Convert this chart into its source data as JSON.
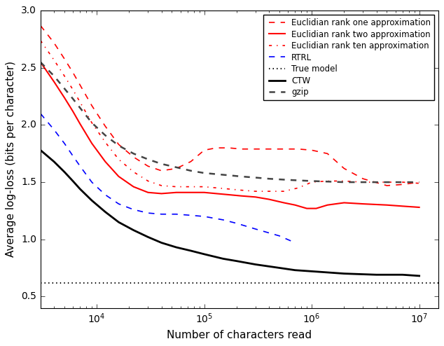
{
  "xlabel": "Number of characters read",
  "ylabel": "Average log-loss (bits per character)",
  "xlim": [
    3000,
    15000000
  ],
  "ylim": [
    0.4,
    3.0
  ],
  "yticks": [
    0.5,
    1.0,
    1.5,
    2.0,
    2.5,
    3.0
  ],
  "background": "#ffffff",
  "series": [
    {
      "key": "rank_one",
      "label": "Euclidian rank one approximation",
      "color": "red",
      "linestyle": "--",
      "linewidth": 1.2,
      "x": [
        3000,
        4000,
        5000,
        6000,
        7000,
        9000,
        12000,
        16000,
        22000,
        30000,
        40000,
        55000,
        75000,
        100000,
        130000,
        170000,
        220000,
        300000,
        400000,
        550000,
        750000,
        1000000,
        1400000,
        2000000,
        3000000,
        5000000,
        7000000,
        10000000
      ],
      "y": [
        2.87,
        2.72,
        2.58,
        2.46,
        2.35,
        2.17,
        1.99,
        1.83,
        1.72,
        1.64,
        1.6,
        1.62,
        1.68,
        1.78,
        1.8,
        1.8,
        1.79,
        1.79,
        1.79,
        1.79,
        1.79,
        1.78,
        1.75,
        1.62,
        1.53,
        1.47,
        1.48,
        1.5
      ]
    },
    {
      "key": "rank_two",
      "label": "Euclidian rank two approximation",
      "color": "red",
      "linestyle": "-",
      "linewidth": 1.5,
      "x": [
        3000,
        4000,
        5000,
        6000,
        7000,
        9000,
        12000,
        16000,
        22000,
        30000,
        40000,
        55000,
        75000,
        100000,
        130000,
        170000,
        220000,
        300000,
        400000,
        550000,
        700000,
        900000,
        1100000,
        1400000,
        2000000,
        3000000,
        5000000,
        7000000,
        10000000
      ],
      "y": [
        2.55,
        2.38,
        2.24,
        2.12,
        2.01,
        1.84,
        1.68,
        1.55,
        1.46,
        1.41,
        1.4,
        1.41,
        1.41,
        1.41,
        1.4,
        1.39,
        1.38,
        1.37,
        1.35,
        1.32,
        1.3,
        1.27,
        1.27,
        1.3,
        1.32,
        1.31,
        1.3,
        1.29,
        1.28
      ]
    },
    {
      "key": "rank_ten",
      "label": "Euclidian rank ten approximation",
      "color": "red",
      "linestyle": "-.",
      "linewidth": 1.2,
      "x": [
        3000,
        4000,
        5000,
        6000,
        7000,
        9000,
        12000,
        16000,
        22000,
        30000,
        40000,
        55000,
        75000,
        100000,
        130000,
        170000,
        220000,
        300000,
        400000,
        550000,
        750000,
        1000000,
        1400000,
        2000000,
        3000000,
        5000000,
        7000000,
        10000000
      ],
      "y": [
        2.74,
        2.57,
        2.43,
        2.31,
        2.2,
        2.02,
        1.85,
        1.7,
        1.59,
        1.51,
        1.47,
        1.46,
        1.46,
        1.46,
        1.45,
        1.44,
        1.43,
        1.42,
        1.42,
        1.42,
        1.45,
        1.5,
        1.51,
        1.51,
        1.5,
        1.5,
        1.5,
        1.49
      ]
    },
    {
      "key": "rtrl",
      "label": "RTRL",
      "color": "blue",
      "linestyle": "--",
      "linewidth": 1.2,
      "x": [
        3000,
        4000,
        5000,
        6000,
        7000,
        9000,
        12000,
        16000,
        22000,
        30000,
        40000,
        55000,
        75000,
        100000,
        150000,
        200000,
        300000,
        500000,
        700000
      ],
      "y": [
        2.1,
        1.96,
        1.84,
        1.73,
        1.64,
        1.5,
        1.39,
        1.31,
        1.26,
        1.23,
        1.22,
        1.22,
        1.21,
        1.2,
        1.17,
        1.14,
        1.09,
        1.03,
        0.97
      ]
    },
    {
      "key": "true_model",
      "label": "True model",
      "color": "black",
      "linestyle": ":",
      "linewidth": 1.5,
      "x": [
        3000,
        15000000
      ],
      "y": [
        0.62,
        0.62
      ]
    },
    {
      "key": "ctw",
      "label": "CTW",
      "color": "black",
      "linestyle": "-",
      "linewidth": 2.0,
      "x": [
        3000,
        4000,
        5000,
        6000,
        7000,
        9000,
        12000,
        16000,
        22000,
        30000,
        40000,
        55000,
        75000,
        100000,
        150000,
        200000,
        300000,
        500000,
        700000,
        1000000,
        2000000,
        4000000,
        7000000,
        10000000
      ],
      "y": [
        1.78,
        1.68,
        1.59,
        1.51,
        1.44,
        1.34,
        1.24,
        1.15,
        1.08,
        1.02,
        0.97,
        0.93,
        0.9,
        0.87,
        0.83,
        0.81,
        0.78,
        0.75,
        0.73,
        0.72,
        0.7,
        0.69,
        0.69,
        0.68
      ]
    },
    {
      "key": "gzip",
      "label": "gzip",
      "color": "#444444",
      "linestyle": "--",
      "linewidth": 1.8,
      "x": [
        3000,
        4000,
        5000,
        6000,
        7000,
        9000,
        12000,
        16000,
        22000,
        30000,
        40000,
        55000,
        75000,
        100000,
        130000,
        170000,
        220000,
        300000,
        400000,
        600000,
        1000000,
        2000000,
        4000000,
        7000000,
        10000000
      ],
      "y": [
        2.55,
        2.43,
        2.32,
        2.23,
        2.15,
        2.02,
        1.91,
        1.82,
        1.75,
        1.7,
        1.66,
        1.63,
        1.6,
        1.58,
        1.57,
        1.56,
        1.55,
        1.54,
        1.53,
        1.52,
        1.51,
        1.5,
        1.5,
        1.5,
        1.5
      ]
    }
  ]
}
